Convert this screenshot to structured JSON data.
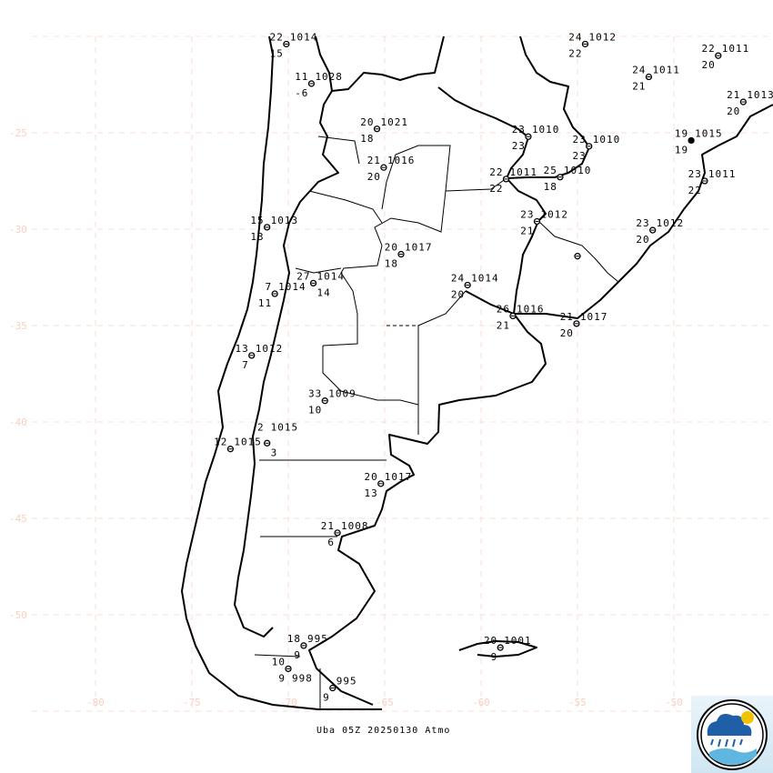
{
  "map": {
    "lat_range": [
      -55,
      -20
    ],
    "lon_range": [
      -83.3,
      -44.8
    ],
    "grid_spacing_deg": 5,
    "lat_labels": [
      "-25",
      "-30",
      "-35",
      "-40",
      "-45",
      "-50"
    ],
    "lon_labels": [
      "-80",
      "-75",
      "-70",
      "-65",
      "-60",
      "-55",
      "-50"
    ],
    "grid_color": "#fadcd4",
    "line_color": "#000000"
  },
  "stations": [
    {
      "lat": -20.4,
      "lon": -70.1,
      "t": "22",
      "p": "1014",
      "td": "15"
    },
    {
      "lat": -22.45,
      "lon": -68.8,
      "t": "11",
      "p": "1028",
      "td": "-6"
    },
    {
      "lat": -24.8,
      "lon": -65.4,
      "t": "20",
      "p": "1021",
      "td": "18"
    },
    {
      "lat": -26.8,
      "lon": -65.05,
      "t": "21",
      "p": "1016",
      "td": "20"
    },
    {
      "lat": -29.9,
      "lon": -71.1,
      "t": "15",
      "p": "1013",
      "td": "13"
    },
    {
      "lat": -31.3,
      "lon": -64.15,
      "t": "20",
      "p": "1017",
      "td": "18"
    },
    {
      "lat": -32.8,
      "lon": -68.7,
      "t": "27",
      "p": "1014",
      "td": "14"
    },
    {
      "lat": -33.35,
      "lon": -70.7,
      "t": "7",
      "p": "1014",
      "td": "11"
    },
    {
      "lat": -36.55,
      "lon": -71.9,
      "t": "13",
      "p": "1012",
      "td": "7"
    },
    {
      "lat": -38.9,
      "lon": -68.1,
      "t": "33",
      "p": "1009",
      "td": "10"
    },
    {
      "lat": -41.1,
      "lon": -71.1,
      "t": "2",
      "p": "1015",
      "td": "3"
    },
    {
      "lat": -41.4,
      "lon": -73.0,
      "t": "12",
      "p": "1015",
      "td": ""
    },
    {
      "lat": -43.2,
      "lon": -65.2,
      "t": "20",
      "p": "1017",
      "td": "13"
    },
    {
      "lat": -45.75,
      "lon": -67.45,
      "t": "21",
      "p": "1008",
      "td": "6"
    },
    {
      "lat": -51.6,
      "lon": -69.2,
      "t": "18",
      "p": "995",
      "td": "9"
    },
    {
      "lat": -52.8,
      "lon": -70.0,
      "t": "10",
      "p": "998",
      "td": "9"
    },
    {
      "lat": -53.8,
      "lon": -67.7,
      "t": "",
      "p": "995",
      "td": "9"
    },
    {
      "lat": -51.7,
      "lon": -59.0,
      "t": "20",
      "p": "1001",
      "td": "9"
    },
    {
      "lat": -20.4,
      "lon": -54.6,
      "t": "24",
      "p": "1012",
      "td": "22"
    },
    {
      "lat": -21.0,
      "lon": -47.7,
      "t": "22",
      "p": "1011",
      "td": "20"
    },
    {
      "lat": -22.1,
      "lon": -51.3,
      "t": "24",
      "p": "1011",
      "td": "21"
    },
    {
      "lat": -23.4,
      "lon": -46.4,
      "t": "21",
      "p": "1013",
      "td": "20"
    },
    {
      "lat": -25.2,
      "lon": -57.55,
      "t": "23",
      "p": "1010",
      "td": "23"
    },
    {
      "lat": -25.7,
      "lon": -54.4,
      "t": "23",
      "p": "1010",
      "td": "23"
    },
    {
      "lat": -25.4,
      "lon": -49.1,
      "t": "19",
      "p": "1015",
      "td": "19",
      "filled": true
    },
    {
      "lat": -27.4,
      "lon": -58.7,
      "t": "22",
      "p": "1011",
      "td": "22"
    },
    {
      "lat": -27.3,
      "lon": -55.9,
      "t": "25",
      "p": "1010",
      "td": "18"
    },
    {
      "lat": -27.5,
      "lon": -48.4,
      "t": "23",
      "p": "1011",
      "td": "22"
    },
    {
      "lat": -29.6,
      "lon": -57.1,
      "t": "23",
      "p": "1012",
      "td": "21"
    },
    {
      "lat": -30.05,
      "lon": -51.1,
      "t": "23",
      "p": "1012",
      "td": "20"
    },
    {
      "lat": -32.9,
      "lon": -60.7,
      "t": "24",
      "p": "1014",
      "td": "20"
    },
    {
      "lat": -34.5,
      "lon": -58.35,
      "t": "26",
      "p": "1016",
      "td": "21"
    },
    {
      "lat": -34.9,
      "lon": -55.05,
      "t": "21",
      "p": "1017",
      "td": "20"
    },
    {
      "lat": -31.4,
      "lon": -55.0,
      "t": "",
      "p": "",
      "td": ""
    }
  ],
  "footer": {
    "caption": "Uba 05Z 20250130 Atmo"
  },
  "logo": {
    "icon": "rain-cloud-sun-wave-logo",
    "colors": {
      "cloud": "#1f5fa8",
      "sun": "#f2c200",
      "wave": "#5fb6df"
    }
  }
}
